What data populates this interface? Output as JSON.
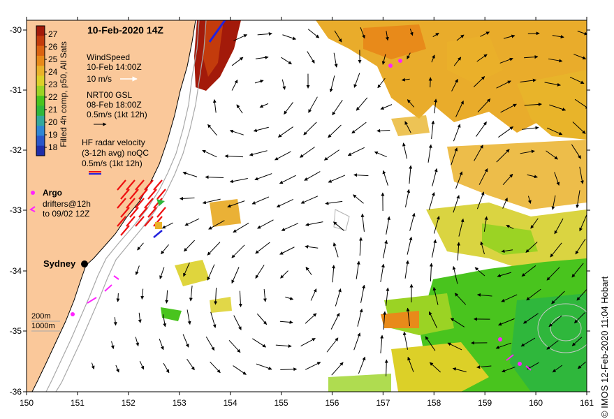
{
  "title": "10-Feb-2020 14Z",
  "colorbar": {
    "label": "Filled 4h comp, p50, All Sats",
    "ticks": [
      "27",
      "26",
      "25",
      "24",
      "23",
      "22",
      "21",
      "20",
      "19",
      "18"
    ],
    "colors": [
      "#a31a0a",
      "#c33b0c",
      "#db6312",
      "#e88a1a",
      "#eab22a",
      "#dcd028",
      "#9bd324",
      "#49c41e",
      "#2fb73c",
      "#33a89c",
      "#2f86d4",
      "#2a56c9",
      "#1f2ea8"
    ]
  },
  "legend": {
    "wind_title": "WindSpeed",
    "wind_time": "10-Feb 14:00Z",
    "wind_scale": "10 m/s",
    "nrt_title": "NRT00 GSL",
    "nrt_time": "08-Feb 18:00Z",
    "nrt_scale": "0.5m/s (1kt 12h)",
    "hf_title": "HF radar velocity",
    "hf_sub": "(3-12h avg) noQC",
    "hf_scale": "0.5m/s (1kt 12h)",
    "argo": "Argo",
    "drifters_1": "drifters@12h",
    "drifters_2": "to 09/02 12Z",
    "bathy_200": "200m",
    "bathy_1000": "1000m"
  },
  "place_label": "Sydney",
  "credit": "© IMOS 12-Feb-2020 11:04 Hobart",
  "axes": {
    "x_ticks": [
      "150",
      "151",
      "152",
      "153",
      "154",
      "155",
      "156",
      "157",
      "158",
      "159",
      "160",
      "161"
    ],
    "y_ticks": [
      "-30",
      "-31",
      "-32",
      "-33",
      "-34",
      "-35",
      "-36"
    ]
  },
  "colors": {
    "land": "#fac89a",
    "bathy": "#a8a8a8",
    "argo": "#ff22ff",
    "hf_red": "#ee1111",
    "hf_blue": "#2222dd"
  }
}
